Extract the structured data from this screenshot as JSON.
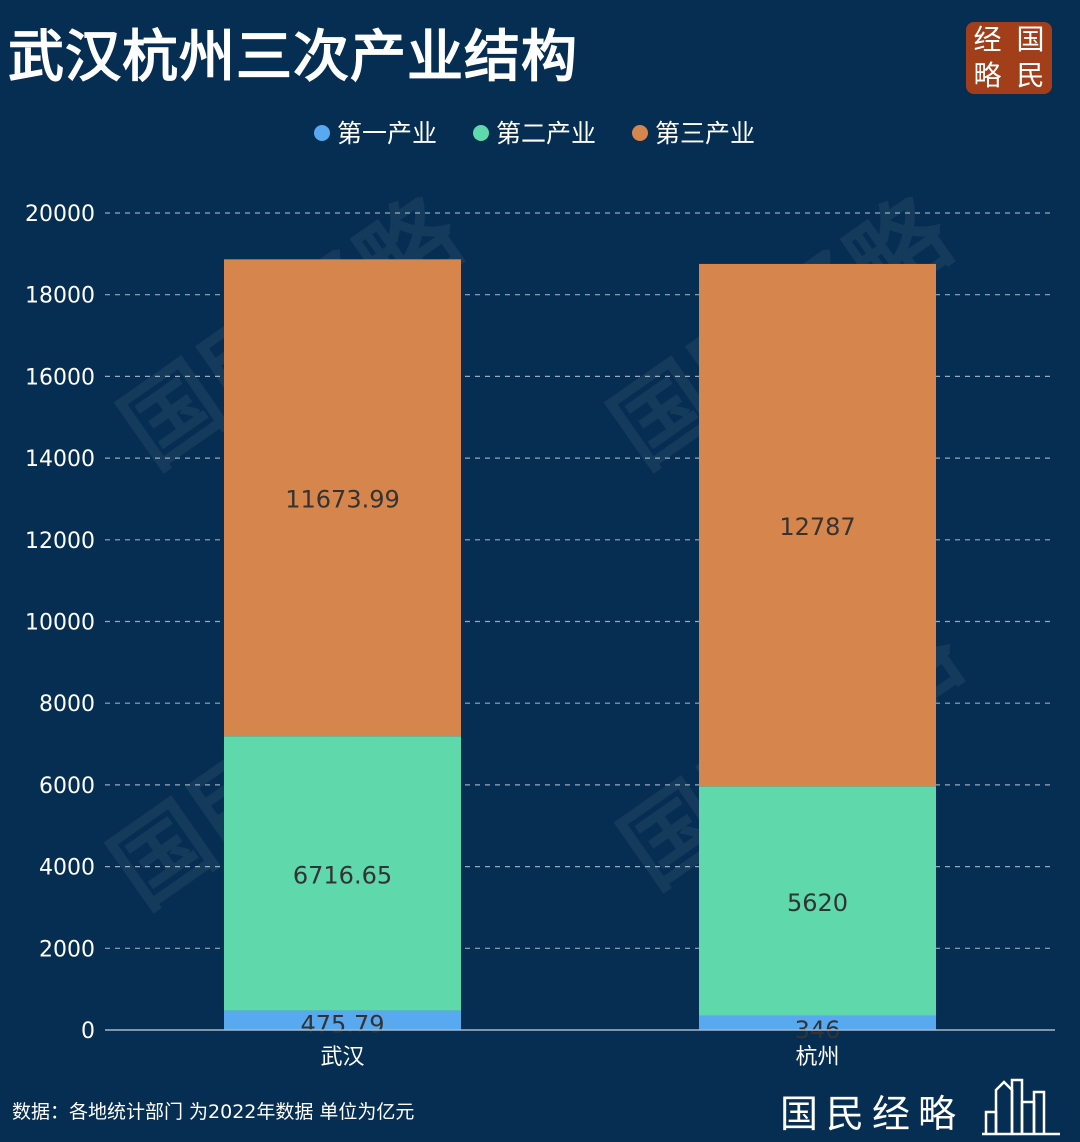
{
  "title": "武汉杭州三次产业结构",
  "brand_seal": [
    "经",
    "国",
    "略",
    "民"
  ],
  "brand_watermark": "国民经略",
  "footer": {
    "source": "数据：各地统计部门 为2022年数据 单位为亿元",
    "brand": "国民经略"
  },
  "colors": {
    "background": "#062e52",
    "primary": "#58a9ef",
    "secondary": "#5fd8ac",
    "tertiary": "#d6854d",
    "seal": "#a33e1a"
  },
  "icons": [
    "skyline-icon"
  ],
  "chart_data": {
    "type": "bar",
    "stacked": true,
    "categories": [
      "武汉",
      "杭州"
    ],
    "series": [
      {
        "name": "第一产业",
        "values": [
          475.79,
          346
        ],
        "color": "#58a9ef"
      },
      {
        "name": "第二产业",
        "values": [
          6716.65,
          5620
        ],
        "color": "#5fd8ac"
      },
      {
        "name": "第三产业",
        "values": [
          11673.99,
          12787
        ],
        "color": "#d6854d"
      }
    ],
    "data_labels": [
      [
        "475.79",
        "346"
      ],
      [
        "6716.65",
        "5620"
      ],
      [
        "11673.99",
        "12787"
      ]
    ],
    "ylim": [
      0,
      20000
    ],
    "yticks": [
      0,
      2000,
      4000,
      6000,
      8000,
      10000,
      12000,
      14000,
      16000,
      18000,
      20000
    ],
    "grid": true,
    "legend_position": "top-center",
    "xlabel": "",
    "ylabel": ""
  }
}
